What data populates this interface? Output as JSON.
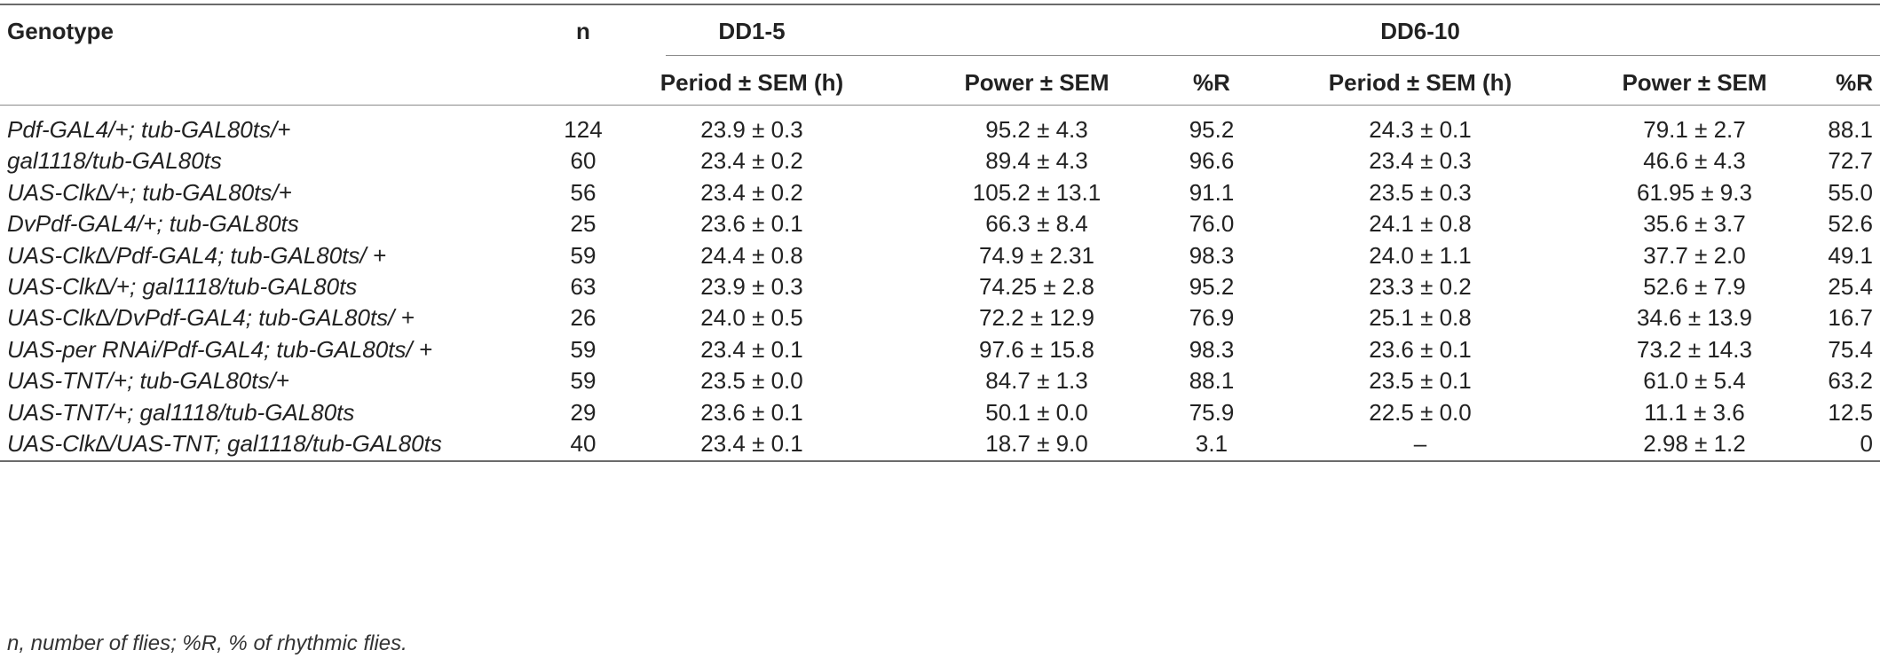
{
  "table": {
    "headers": {
      "genotype": "Genotype",
      "n": "n",
      "dd1": "DD1-5",
      "dd6": "DD6-10",
      "period": "Period ± SEM (h)",
      "power": "Power ± SEM",
      "pct_r": "%R"
    },
    "rows": [
      {
        "genotype": "Pdf-GAL4/+; tub-GAL80ts/+",
        "n": "124",
        "p1": "23.9 ± 0.3",
        "w1": "95.2 ± 4.3",
        "r1": "95.2",
        "p2": "24.3 ± 0.1",
        "w2": "79.1 ± 2.7",
        "r2": "88.1"
      },
      {
        "genotype": "gal1118/tub-GAL80ts",
        "n": "60",
        "p1": "23.4 ± 0.2",
        "w1": "89.4 ± 4.3",
        "r1": "96.6",
        "p2": "23.4 ± 0.3",
        "w2": "46.6 ± 4.3",
        "r2": "72.7"
      },
      {
        "genotype": "UAS-Clk∆/+; tub-GAL80ts/+",
        "n": "56",
        "p1": "23.4 ± 0.2",
        "w1": "105.2 ± 13.1",
        "r1": "91.1",
        "p2": "23.5 ± 0.3",
        "w2": "61.95 ± 9.3",
        "r2": "55.0"
      },
      {
        "genotype": "DvPdf-GAL4/+; tub-GAL80ts",
        "n": "25",
        "p1": "23.6 ± 0.1",
        "w1": "66.3 ± 8.4",
        "r1": "76.0",
        "p2": "24.1 ± 0.8",
        "w2": "35.6 ± 3.7",
        "r2": "52.6"
      },
      {
        "genotype": "UAS-Clk∆/Pdf-GAL4; tub-GAL80ts/ +",
        "n": "59",
        "p1": "24.4 ± 0.8",
        "w1": "74.9 ± 2.31",
        "r1": "98.3",
        "p2": "24.0 ± 1.1",
        "w2": "37.7 ± 2.0",
        "r2": "49.1"
      },
      {
        "genotype": "UAS-Clk∆/+; gal1118/tub-GAL80ts",
        "n": "63",
        "p1": "23.9 ± 0.3",
        "w1": "74.25 ± 2.8",
        "r1": "95.2",
        "p2": "23.3 ± 0.2",
        "w2": "52.6 ± 7.9",
        "r2": "25.4"
      },
      {
        "genotype": "UAS-Clk∆/DvPdf-GAL4; tub-GAL80ts/ +",
        "n": "26",
        "p1": "24.0 ± 0.5",
        "w1": "72.2 ± 12.9",
        "r1": "76.9",
        "p2": "25.1 ± 0.8",
        "w2": "34.6 ± 13.9",
        "r2": "16.7"
      },
      {
        "genotype": "UAS-per RNAi/Pdf-GAL4; tub-GAL80ts/ +",
        "n": "59",
        "p1": "23.4 ± 0.1",
        "w1": "97.6 ± 15.8",
        "r1": "98.3",
        "p2": "23.6 ± 0.1",
        "w2": "73.2 ± 14.3",
        "r2": "75.4"
      },
      {
        "genotype": "UAS-TNT/+; tub-GAL80ts/+",
        "n": "59",
        "p1": "23.5 ± 0.0",
        "w1": "84.7 ± 1.3",
        "r1": "88.1",
        "p2": "23.5 ± 0.1",
        "w2": "61.0 ± 5.4",
        "r2": "63.2"
      },
      {
        "genotype": "UAS-TNT/+; gal1118/tub-GAL80ts",
        "n": "29",
        "p1": "23.6 ± 0.1",
        "w1": "50.1 ± 0.0",
        "r1": "75.9",
        "p2": "22.5 ± 0.0",
        "w2": "11.1 ± 3.6",
        "r2": "12.5"
      },
      {
        "genotype": "UAS-Clk∆/UAS-TNT; gal1118/tub-GAL80ts",
        "n": "40",
        "p1": "23.4 ± 0.1",
        "w1": "18.7 ± 9.0",
        "r1": "3.1",
        "p2": "–",
        "w2": "2.98 ± 1.2",
        "r2": "0"
      }
    ]
  },
  "footnote": "n, number of flies; %R, % of rhythmic flies."
}
